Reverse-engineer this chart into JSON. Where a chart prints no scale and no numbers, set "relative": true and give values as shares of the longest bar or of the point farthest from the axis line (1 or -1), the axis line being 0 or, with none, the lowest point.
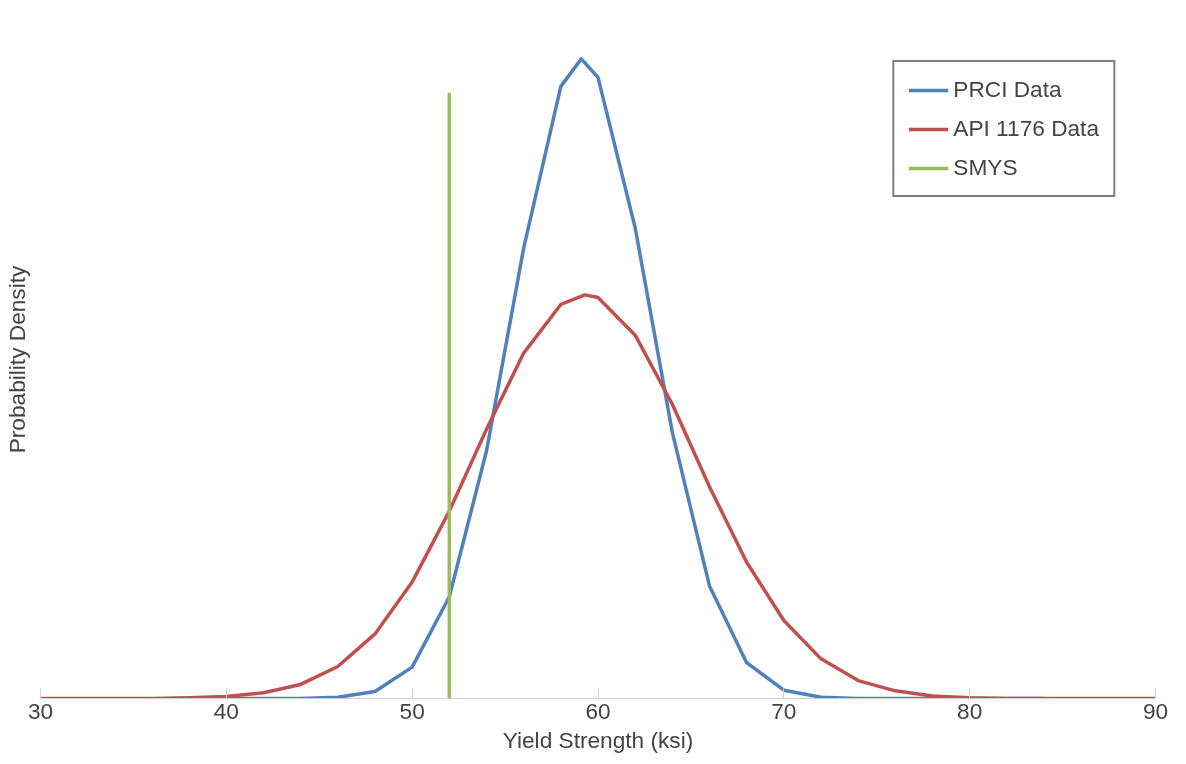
{
  "chart_data": {
    "type": "line",
    "xlabel": "Yield Strength (ksi)",
    "ylabel": "Probability Density",
    "relative": true,
    "xlim": [
      30,
      90
    ],
    "xticks": [
      30,
      40,
      50,
      60,
      70,
      80,
      90
    ],
    "grid": false,
    "legend": "top right",
    "marker": "none",
    "line_style": "solid",
    "series": [
      {
        "name": "PRCI Data",
        "color": "#4f81bd",
        "x": [
          40,
          44,
          46,
          48,
          50,
          52,
          54,
          56,
          58,
          59.1,
          60,
          62,
          64,
          66,
          68,
          70,
          72,
          74,
          78,
          84
        ],
        "values": [
          0,
          0,
          0.002,
          0.011,
          0.049,
          0.159,
          0.387,
          0.704,
          0.957,
          1,
          0.971,
          0.736,
          0.416,
          0.176,
          0.056,
          0.013,
          0.002,
          0,
          0,
          0
        ]
      },
      {
        "name": "API 1176 Data",
        "color": "#c0504d",
        "x": [
          30,
          34,
          36,
          38,
          40,
          42,
          44,
          46,
          48,
          50,
          52,
          54,
          56,
          58,
          59.3,
          60,
          62,
          64,
          66,
          68,
          70,
          72,
          74,
          76,
          78,
          80,
          82,
          86,
          90
        ],
        "values": [
          0,
          0,
          0,
          0.001,
          0.003,
          0.009,
          0.022,
          0.05,
          0.101,
          0.182,
          0.293,
          0.421,
          0.54,
          0.616,
          0.631,
          0.627,
          0.568,
          0.46,
          0.331,
          0.213,
          0.122,
          0.062,
          0.028,
          0.012,
          0.004,
          0.001,
          0,
          0,
          0
        ]
      },
      {
        "name": "SMYS",
        "color": "#9bbb59",
        "x": [
          52,
          52
        ],
        "values": [
          0,
          0.947
        ]
      }
    ]
  }
}
